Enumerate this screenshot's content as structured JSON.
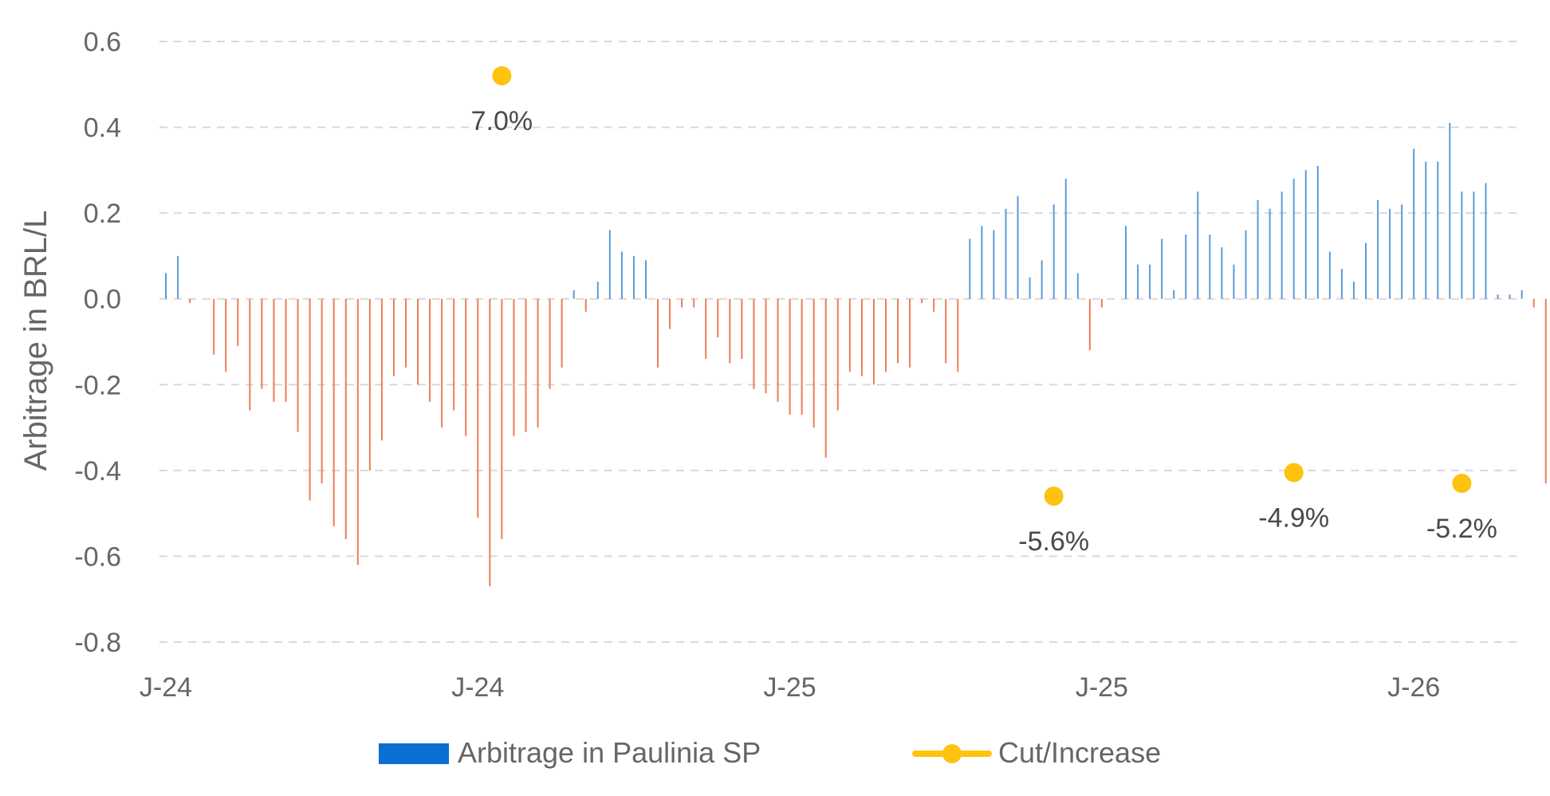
{
  "chart_data": {
    "type": "bar",
    "ylabel": "Arbitrage in BRL/L",
    "xlabel": "",
    "ylim": [
      -0.8,
      0.6
    ],
    "yticks": [
      "0.6",
      "0.4",
      "0.2",
      "0.0",
      "-0.2",
      "-0.4",
      "-0.6",
      "-0.8"
    ],
    "xticks": [
      {
        "label": "J-24",
        "index": 0
      },
      {
        "label": "J-24",
        "index": 26
      },
      {
        "label": "J-25",
        "index": 52
      },
      {
        "label": "J-25",
        "index": 78
      },
      {
        "label": "J-26",
        "index": 104
      }
    ],
    "grid": true,
    "legend_position": "bottom",
    "colors": {
      "positive": "#5b9bd5",
      "negative": "#ed7d57",
      "legend_bar": "#0a6fd1",
      "marker": "#ffc20e",
      "grid": "#d9d9d9",
      "text": "#666666"
    },
    "series": [
      {
        "name": "Arbitrage in Paulinia SP",
        "type": "bar",
        "values": [
          0.06,
          0.1,
          -0.01,
          0,
          -0.13,
          -0.17,
          -0.11,
          -0.26,
          -0.21,
          -0.24,
          -0.24,
          -0.31,
          -0.47,
          -0.43,
          -0.53,
          -0.56,
          -0.62,
          -0.4,
          -0.33,
          -0.18,
          -0.16,
          -0.2,
          -0.24,
          -0.3,
          -0.26,
          -0.32,
          -0.51,
          -0.67,
          -0.56,
          -0.32,
          -0.31,
          -0.3,
          -0.21,
          -0.16,
          0.02,
          -0.03,
          0.04,
          0.16,
          0.11,
          0.1,
          0.09,
          -0.16,
          -0.07,
          -0.02,
          -0.02,
          -0.14,
          -0.09,
          -0.15,
          -0.14,
          -0.21,
          -0.22,
          -0.24,
          -0.27,
          -0.27,
          -0.3,
          -0.37,
          -0.26,
          -0.17,
          -0.18,
          -0.2,
          -0.17,
          -0.15,
          -0.16,
          -0.01,
          -0.03,
          -0.15,
          -0.17,
          0.14,
          0.17,
          0.16,
          0.21,
          0.24,
          0.05,
          0.09,
          0.22,
          0.28,
          0.06,
          -0.12,
          -0.02,
          0,
          0.17,
          0.08,
          0.08,
          0.14,
          0.02,
          0.15,
          0.25,
          0.15,
          0.12,
          0.08,
          0.16,
          0.23,
          0.21,
          0.25,
          0.28,
          0.3,
          0.31,
          0.11,
          0.07,
          0.04,
          0.13,
          0.23,
          0.21,
          0.22,
          0.35,
          0.32,
          0.32,
          0.41,
          0.25,
          0.25,
          0.27,
          0.01,
          0.01,
          0.02,
          -0.02,
          -0.43
        ]
      },
      {
        "name": "Cut/Increase",
        "type": "scatter",
        "points": [
          {
            "index": 28,
            "y": 0.52,
            "label": "7.0%"
          },
          {
            "index": 74,
            "y": -0.46,
            "label": "-5.6%"
          },
          {
            "index": 94,
            "y": -0.405,
            "label": "-4.9%"
          },
          {
            "index": 108,
            "y": -0.43,
            "label": "-5.2%"
          }
        ]
      }
    ]
  }
}
